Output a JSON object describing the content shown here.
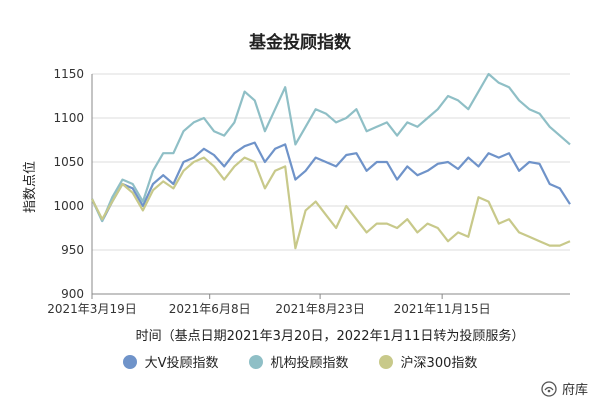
{
  "chart_data": {
    "type": "line",
    "title": "基金投顾指数",
    "ylabel": "指数点位",
    "xlabel": "时间（基点日期2021年3月20日，2022年1月11日转为投顾服务）",
    "ylim": [
      900,
      1150
    ],
    "yticks": [
      900,
      950,
      1000,
      1050,
      1100,
      1150
    ],
    "xticks": [
      "2021年3月19日",
      "2021年6月8日",
      "2021年8月23日",
      "2021年11月15日"
    ],
    "legend_position": "bottom",
    "grid": "horizontal",
    "x": [
      "2021-03-19",
      "2021-03-26",
      "2021-04-02",
      "2021-04-09",
      "2021-04-16",
      "2021-04-23",
      "2021-04-30",
      "2021-05-07",
      "2021-05-14",
      "2021-05-21",
      "2021-05-28",
      "2021-06-04",
      "2021-06-11",
      "2021-06-18",
      "2021-06-25",
      "2021-07-02",
      "2021-07-09",
      "2021-07-16",
      "2021-07-23",
      "2021-07-30",
      "2021-08-06",
      "2021-08-13",
      "2021-08-20",
      "2021-08-27",
      "2021-09-03",
      "2021-09-10",
      "2021-09-17",
      "2021-09-24",
      "2021-10-01",
      "2021-10-08",
      "2021-10-15",
      "2021-10-22",
      "2021-10-29",
      "2021-11-05",
      "2021-11-12",
      "2021-11-19",
      "2021-11-26",
      "2021-12-03",
      "2021-12-10",
      "2021-12-17",
      "2021-12-24",
      "2021-12-31",
      "2022-01-07",
      "2022-01-14",
      "2022-01-21",
      "2022-01-28",
      "2022-02-04",
      "2022-02-11"
    ],
    "series": [
      {
        "name": "大V投顾指数",
        "color": "#6f93c9",
        "values": [
          1008,
          983,
          1005,
          1025,
          1020,
          1000,
          1025,
          1035,
          1025,
          1050,
          1055,
          1065,
          1058,
          1045,
          1060,
          1068,
          1072,
          1050,
          1065,
          1070,
          1030,
          1040,
          1055,
          1050,
          1045,
          1058,
          1060,
          1040,
          1050,
          1050,
          1030,
          1045,
          1035,
          1040,
          1048,
          1050,
          1042,
          1055,
          1045,
          1060,
          1055,
          1060,
          1040,
          1050,
          1048,
          1025,
          1020,
          1002
        ]
      },
      {
        "name": "机构投顾指数",
        "color": "#8fbfc6",
        "values": [
          1008,
          983,
          1010,
          1030,
          1025,
          1005,
          1040,
          1060,
          1060,
          1085,
          1095,
          1100,
          1085,
          1080,
          1095,
          1130,
          1120,
          1085,
          1110,
          1135,
          1070,
          1090,
          1110,
          1105,
          1095,
          1100,
          1110,
          1085,
          1090,
          1095,
          1080,
          1095,
          1090,
          1100,
          1110,
          1125,
          1120,
          1110,
          1130,
          1150,
          1140,
          1135,
          1120,
          1110,
          1105,
          1090,
          1080,
          1070
        ]
      },
      {
        "name": "沪深300指数",
        "color": "#c8c98a",
        "values": [
          1008,
          985,
          1005,
          1025,
          1015,
          995,
          1018,
          1028,
          1020,
          1040,
          1050,
          1055,
          1045,
          1030,
          1045,
          1055,
          1050,
          1020,
          1040,
          1045,
          952,
          995,
          1005,
          990,
          975,
          1000,
          985,
          970,
          980,
          980,
          975,
          985,
          970,
          980,
          975,
          960,
          970,
          965,
          1010,
          1005,
          980,
          985,
          970,
          965,
          960,
          955,
          955,
          960
        ]
      }
    ]
  },
  "watermark": {
    "text": "府库"
  }
}
